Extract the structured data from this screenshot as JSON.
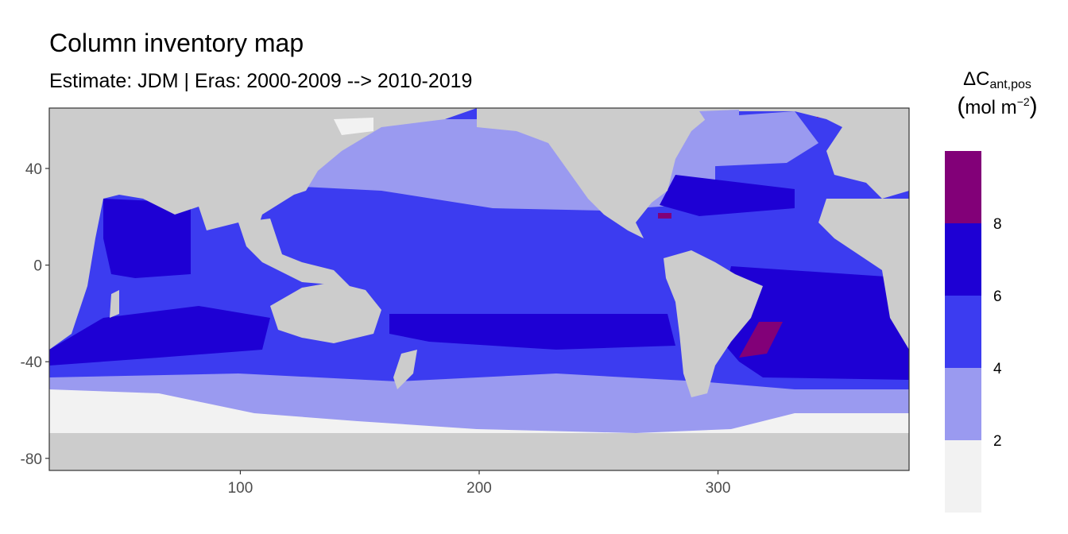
{
  "title": "Column inventory map",
  "subtitle": "Estimate: JDM  | Eras: 2000-2009 --> 2010-2019",
  "legend": {
    "symbol": "ΔC",
    "subscript": "ant,pos",
    "unit_open": "(",
    "unit_text": "mol m",
    "unit_sup": "−2",
    "unit_close": ")",
    "breaks": [
      "2",
      "4",
      "6",
      "8"
    ],
    "bins": [
      {
        "range": "<2",
        "color": "#f2f2f2"
      },
      {
        "range": "2-4",
        "color": "#9a9af0"
      },
      {
        "range": "4-6",
        "color": "#3c3cf0"
      },
      {
        "range": "6-8",
        "color": "#1e00d4"
      },
      {
        "range": ">8",
        "color": "#820078"
      }
    ]
  },
  "chart_data": {
    "type": "heatmap",
    "title": "Column inventory map",
    "subtitle": "Estimate: JDM  | Eras: 2000-2009 --> 2010-2019",
    "xlabel": "",
    "ylabel": "",
    "x_ticks": [
      "100",
      "200",
      "300"
    ],
    "y_ticks": [
      "40",
      "0",
      "-40",
      "-80"
    ],
    "xlim": [
      20,
      380
    ],
    "ylim": [
      -85,
      65
    ],
    "land_color": "#cccccc",
    "legend_position": "right",
    "grid": false
  }
}
